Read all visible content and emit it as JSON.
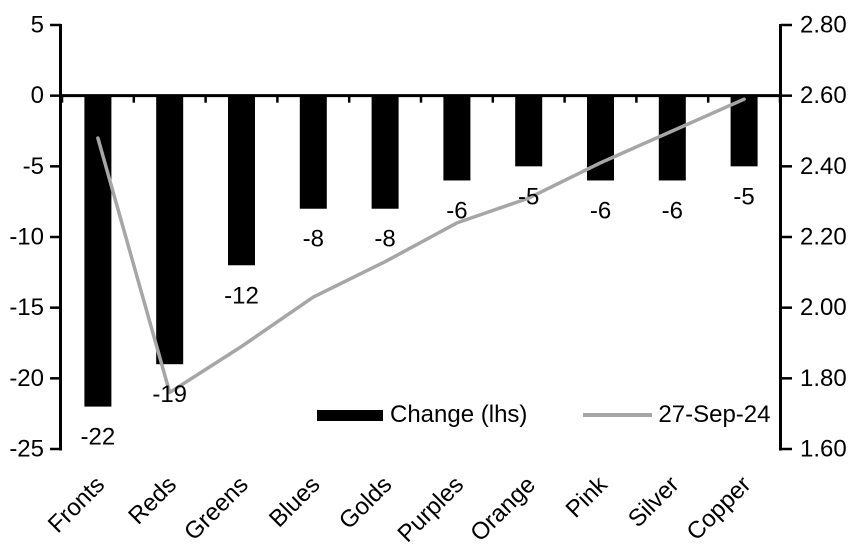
{
  "chart_data": {
    "type": "bar",
    "subtype": "combo-bar-line-dual-axis",
    "title": "",
    "xlabel": "",
    "ylabel_left": "",
    "ylabel_right": "",
    "grid": "off",
    "background_color": "#ffffff",
    "axis_color": "#000000",
    "categories": [
      "Fronts",
      "Reds",
      "Greens",
      "Blues",
      "Golds",
      "Purples",
      "Orange",
      "Pink",
      "Silver",
      "Copper"
    ],
    "series": [
      {
        "name": "Change (lhs)",
        "type": "bar",
        "axis": "left",
        "color": "#000000",
        "values": [
          -22,
          -19,
          -12,
          -8,
          -8,
          -6,
          -5,
          -6,
          -6,
          -5
        ],
        "data_labels": [
          "-22",
          "-19",
          "-12",
          "-8",
          "-8",
          "-6",
          "-5",
          "-6",
          "-6",
          "-5"
        ]
      },
      {
        "name": "27-Sep-24",
        "type": "line",
        "axis": "right",
        "color": "#a6a6a6",
        "values": [
          2.48,
          1.76,
          1.89,
          2.03,
          2.13,
          2.24,
          2.31,
          2.41,
          2.5,
          2.59
        ]
      }
    ],
    "left_axis": {
      "min": -25,
      "max": 5,
      "step": 5,
      "tick_labels": [
        "5",
        "0",
        "-5",
        "-10",
        "-15",
        "-20",
        "-25"
      ]
    },
    "right_axis": {
      "min": 1.6,
      "max": 2.8,
      "step": 0.2,
      "tick_labels": [
        "2.80",
        "2.60",
        "2.40",
        "2.20",
        "2.00",
        "1.80",
        "1.60"
      ]
    },
    "legend": {
      "position": "bottom-inside",
      "entries": [
        "Change (lhs)",
        "27-Sep-24"
      ]
    }
  }
}
